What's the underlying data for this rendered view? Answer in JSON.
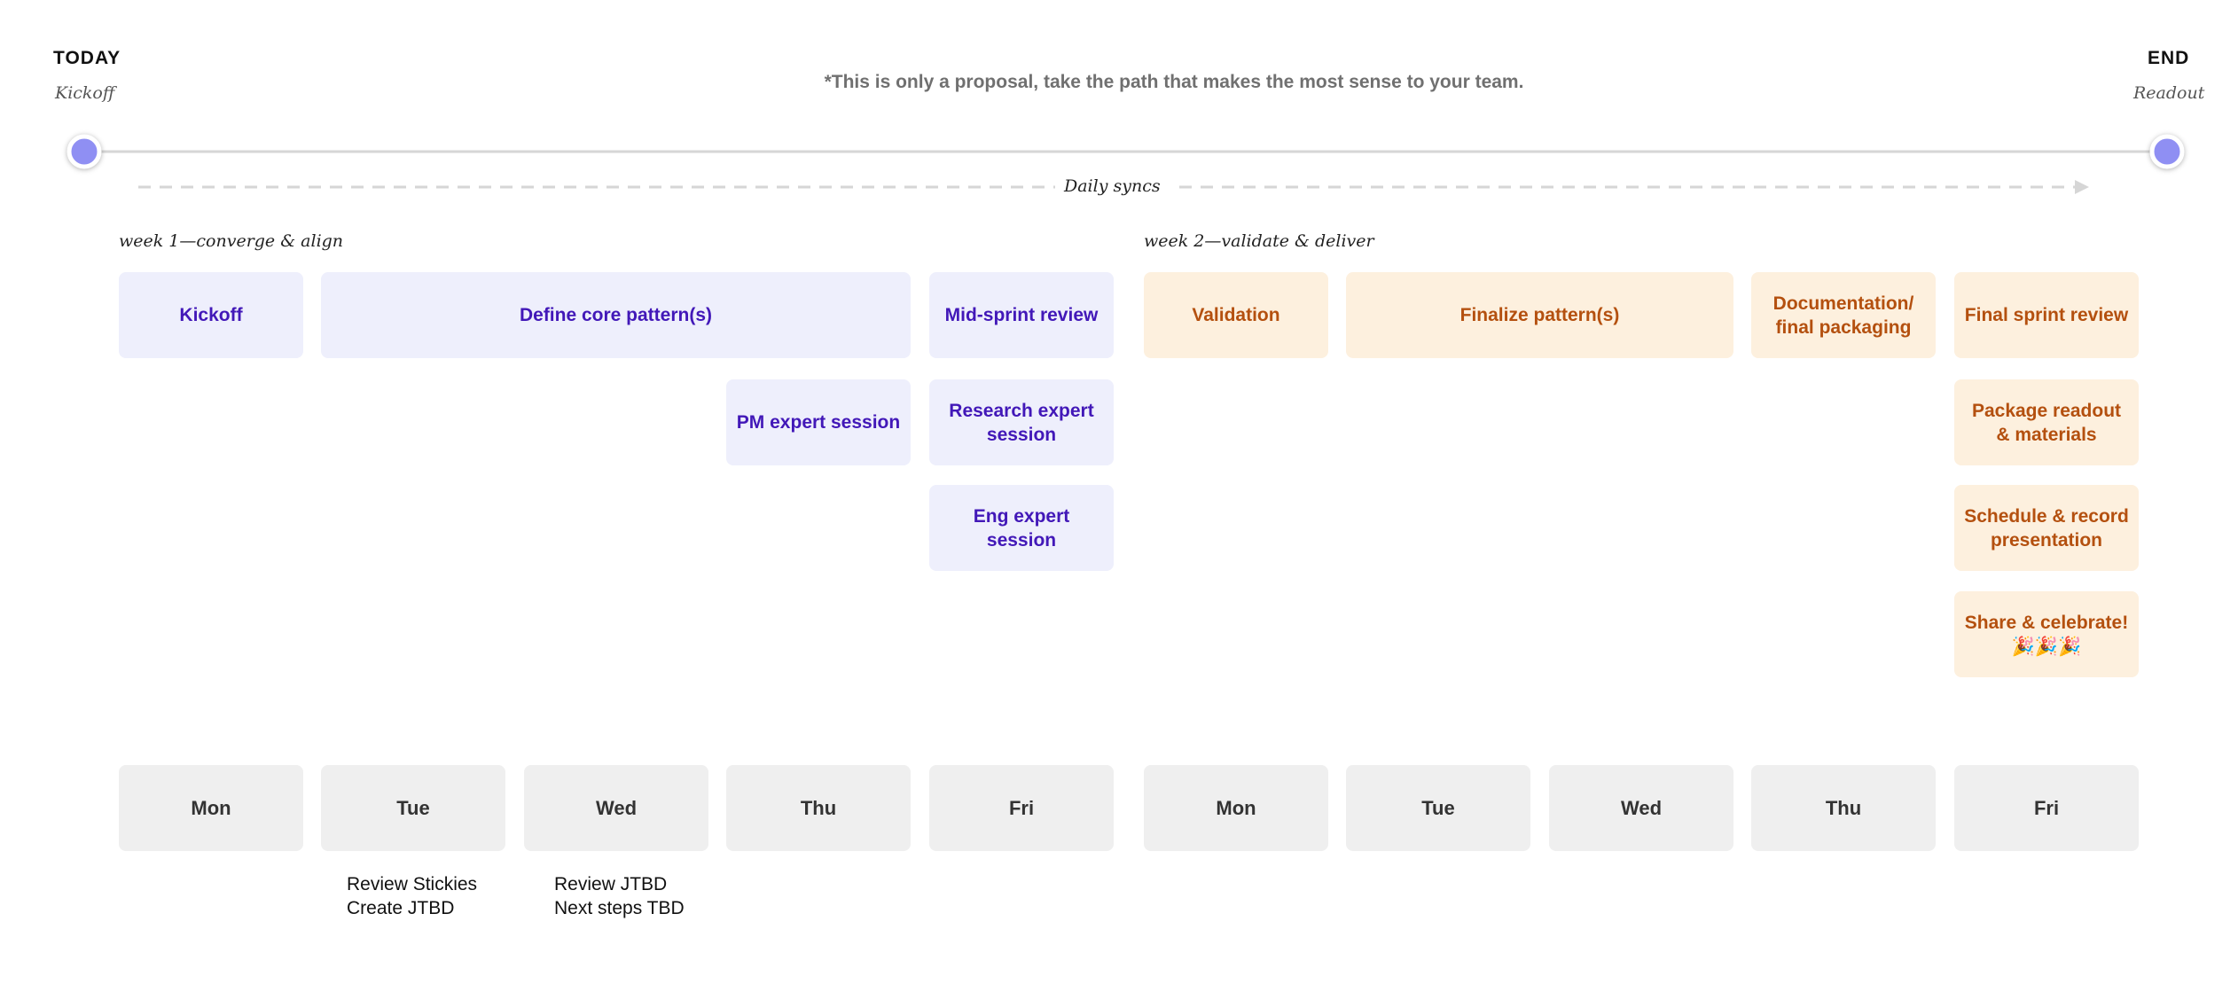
{
  "timeline": {
    "start": {
      "label": "TODAY",
      "sub": "Kickoff"
    },
    "end": {
      "label": "END",
      "sub": "Readout"
    },
    "note": "*This is only a proposal, take the path that makes the most sense to your team.",
    "syncs": "Daily syncs"
  },
  "weeks": [
    {
      "title": "week 1—converge & align",
      "tasks": [
        "Kickoff",
        "Define core pattern(s)",
        "Mid-sprint review",
        "PM expert session",
        "Research expert session",
        "Eng expert session"
      ],
      "days": [
        "Mon",
        "Tue",
        "Wed",
        "Thu",
        "Fri"
      ]
    },
    {
      "title": "week 2—validate & deliver",
      "tasks": [
        "Validation",
        "Finalize pattern(s)",
        "Documentation/ final packaging",
        "Final sprint review",
        "Package readout & materials",
        "Schedule & record presentation",
        "Share & celebrate! 🎉🎉🎉"
      ],
      "days": [
        "Mon",
        "Tue",
        "Wed",
        "Thu",
        "Fri"
      ]
    }
  ],
  "notes": [
    [
      "Review Stickies",
      "Create JTBD"
    ],
    [
      "Review JTBD",
      "Next steps TBD"
    ]
  ]
}
